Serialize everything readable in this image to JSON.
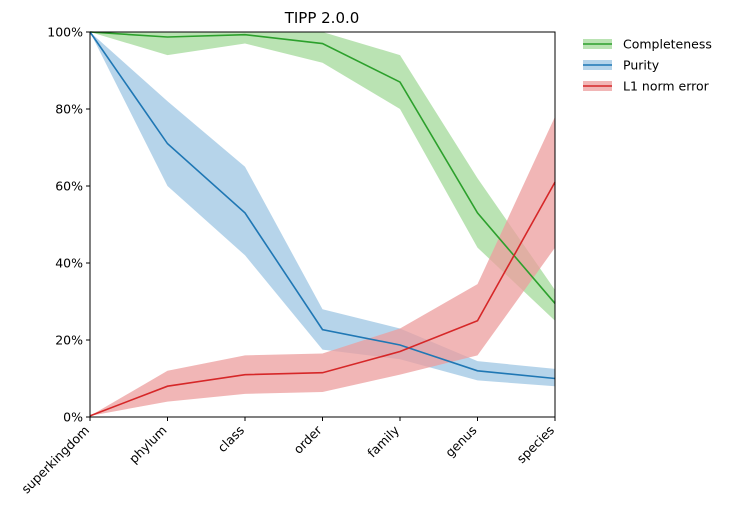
{
  "chart_data": {
    "type": "line",
    "title": "TIPP 2.0.0",
    "xlabel": "",
    "ylabel": "",
    "categories": [
      "superkingdom",
      "phylum",
      "class",
      "order",
      "family",
      "genus",
      "species"
    ],
    "ylim": [
      0,
      100
    ],
    "y_ticks": [
      "0%",
      "20%",
      "40%",
      "60%",
      "80%",
      "100%"
    ],
    "grid": false,
    "legend_position": "outside-top-right",
    "series": [
      {
        "name": "Completeness",
        "color": "#2ca02c",
        "band_color": "#a3d99a",
        "values": [
          100,
          98.7,
          99.3,
          97,
          87,
          53,
          29.5
        ],
        "lower": [
          100,
          94,
          97,
          92,
          80,
          44,
          25
        ],
        "upper": [
          100,
          100,
          100,
          100,
          94,
          62,
          33
        ]
      },
      {
        "name": "Purity",
        "color": "#1f77b4",
        "band_color": "#9ec5e3",
        "values": [
          100,
          71,
          53,
          22.7,
          18.7,
          12,
          10
        ],
        "lower": [
          100,
          60,
          42,
          17.5,
          15,
          9.5,
          8
        ],
        "upper": [
          100,
          82,
          65,
          28,
          23,
          14.5,
          12.5
        ]
      },
      {
        "name": "L1 norm error",
        "color": "#d62728",
        "band_color": "#ec9d9e",
        "values": [
          0.3,
          8,
          11,
          11.5,
          17,
          25,
          61
        ],
        "lower": [
          0.3,
          4,
          6,
          6.5,
          11,
          16,
          44
        ],
        "upper": [
          0.3,
          12,
          16,
          16.5,
          23,
          34.5,
          78
        ]
      }
    ]
  }
}
